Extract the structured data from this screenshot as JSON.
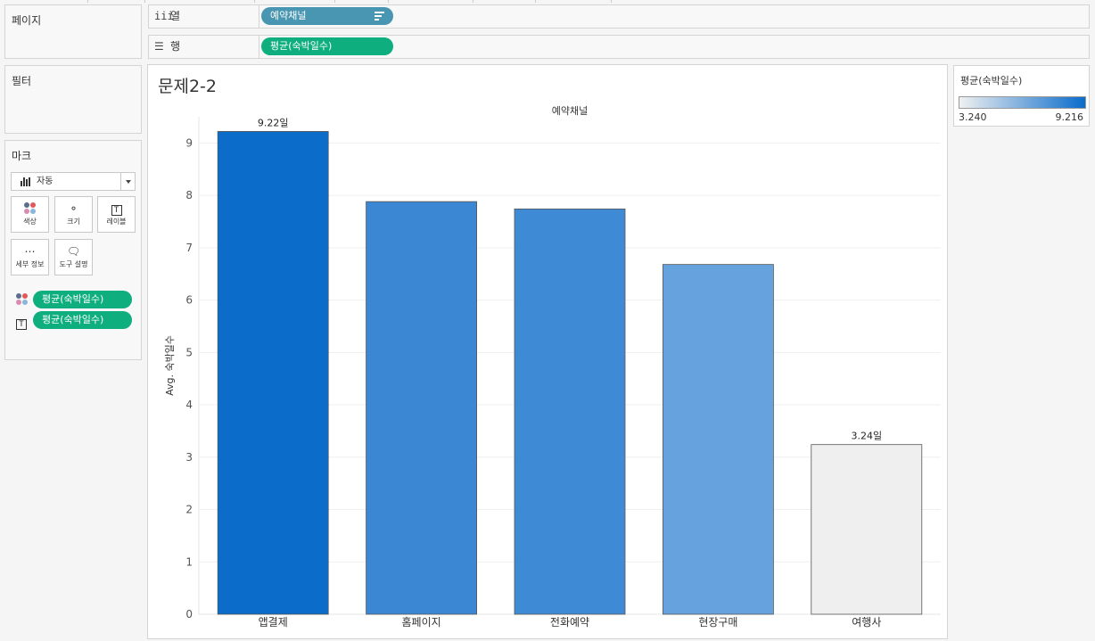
{
  "panels": {
    "pages_title": "페이지",
    "filters_title": "필터",
    "marks_title": "마크"
  },
  "shelves": {
    "columns": {
      "label": "열",
      "icon": "columns-icon",
      "pill": "예약채널"
    },
    "rows": {
      "label": "행",
      "icon": "rows-icon",
      "pill": "평균(숙박일수)"
    }
  },
  "marks": {
    "type_value": "자동",
    "buttons": [
      {
        "label": "색상",
        "icon": "color-icon"
      },
      {
        "label": "크기",
        "icon": "size-icon"
      },
      {
        "label": "레이블",
        "icon": "label-icon"
      },
      {
        "label": "세부 정보",
        "icon": "detail-icon"
      },
      {
        "label": "도구 설명",
        "icon": "tooltip-icon"
      }
    ],
    "fields": [
      {
        "pill": "평균(숙박일수)",
        "icon": "color-dots-icon"
      },
      {
        "pill": "평균(숙박일수)",
        "icon": "label-t-icon"
      }
    ]
  },
  "view": {
    "title": "문제2-2"
  },
  "legend": {
    "title": "평균(숙박일수)",
    "min": "3.240",
    "max": "9.216",
    "color_low": "#f0f0f0",
    "color_high": "#0a6ccb"
  },
  "chart_data": {
    "type": "bar",
    "title": "",
    "column_header": "예약채널",
    "xlabel": "",
    "ylabel": "Avg. 숙박일수",
    "categories": [
      "앱결제",
      "홈페이지",
      "전화예약",
      "현장구매",
      "여행사"
    ],
    "values": [
      9.22,
      7.88,
      7.74,
      6.68,
      3.24
    ],
    "data_labels": [
      "9.22일",
      "",
      "",
      "",
      "3.24일"
    ],
    "bar_colors": [
      "#0b6cc9",
      "#3b87d4",
      "#3f8ad5",
      "#66a3de",
      "#efefef"
    ],
    "ylim": [
      0,
      9.5
    ],
    "yticks": [
      0,
      1,
      2,
      3,
      4,
      5,
      6,
      7,
      8,
      9
    ],
    "grid": true,
    "legend_placement": "right"
  }
}
